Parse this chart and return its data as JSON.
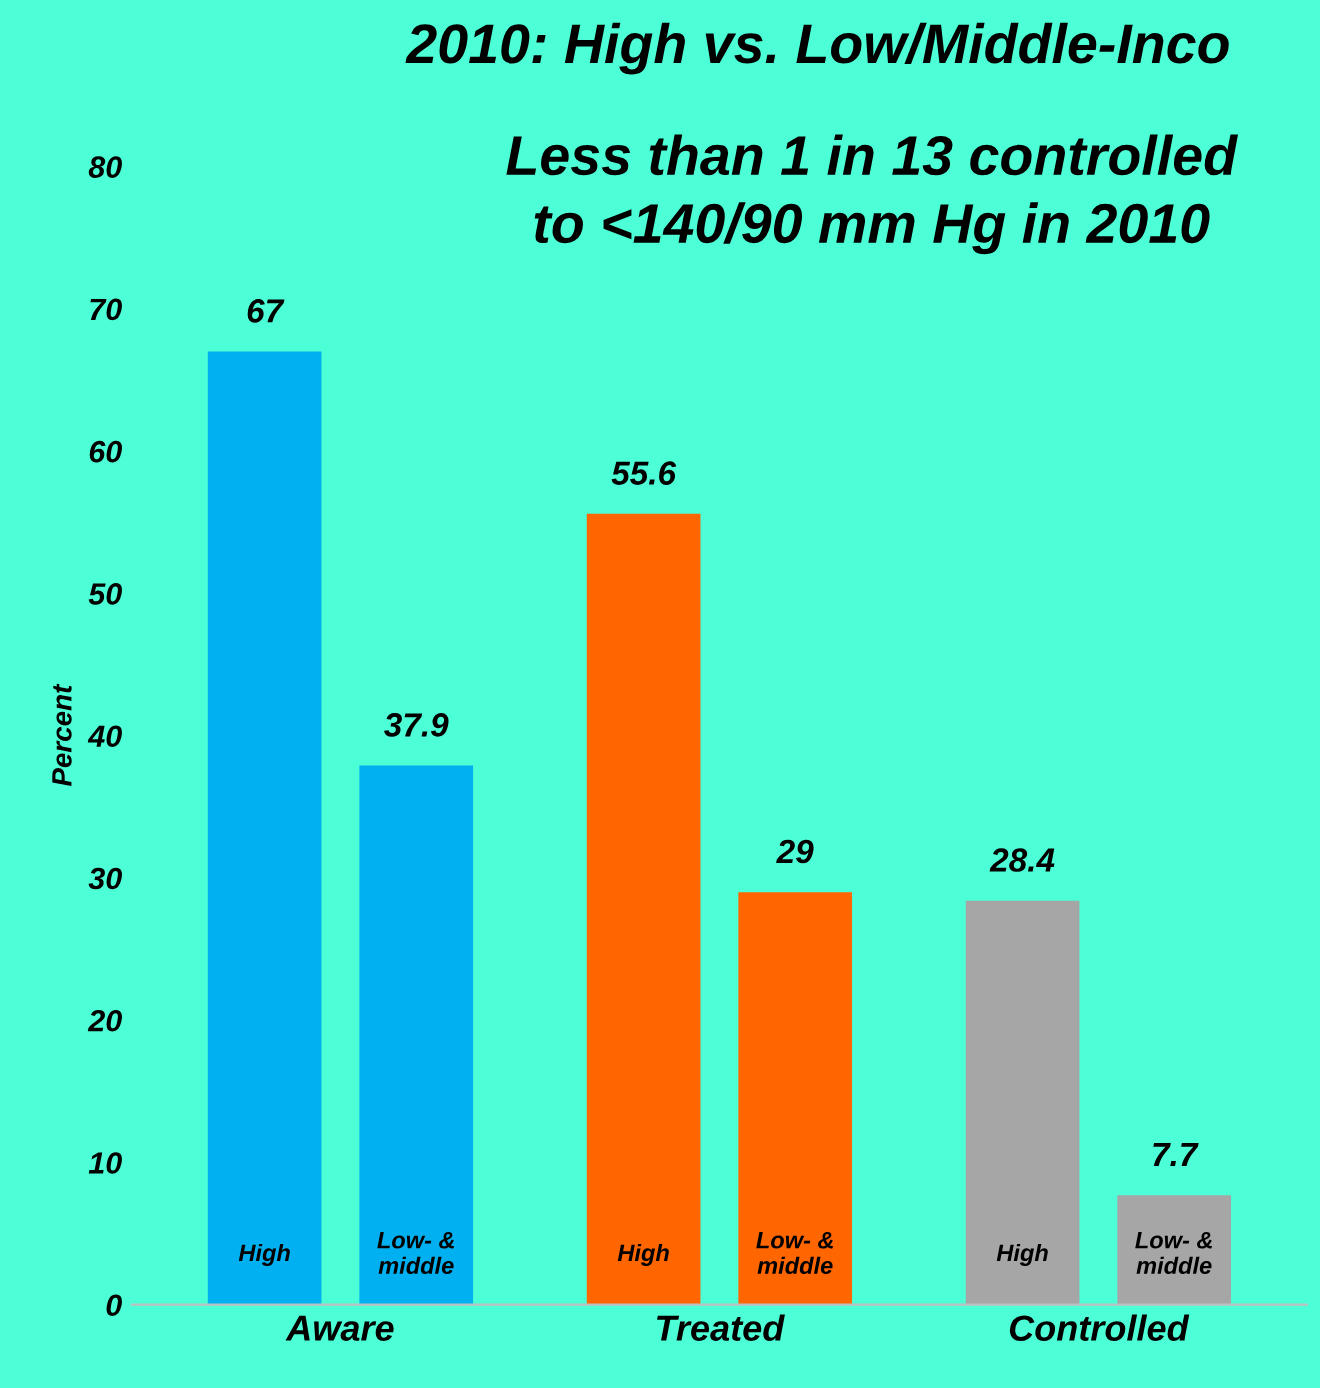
{
  "chart_data": {
    "type": "bar",
    "title": "2010: High vs. Low/Middle-Inco",
    "ylabel": "Percent",
    "categories": [
      "Aware",
      "Treated",
      "Controlled"
    ],
    "series": [
      {
        "name": "High",
        "colors": [
          "#00b0f0",
          "#ff6600",
          "#a6a6a6"
        ],
        "values": [
          67,
          55.6,
          28.4
        ]
      },
      {
        "name": "Low- &\nmiddle",
        "colors": [
          "#00b0f0",
          "#ff6600",
          "#a6a6a6"
        ],
        "values": [
          37.9,
          29,
          7.7
        ]
      }
    ],
    "ylim": [
      0,
      80
    ],
    "yticks": [
      0,
      10,
      20,
      30,
      40,
      50,
      60,
      70,
      80
    ],
    "data_labels": true,
    "grid": false,
    "legend": false,
    "annotations": [
      "Less than 1 in 13 controlled\nto <140/90 mm Hg in 2010"
    ]
  }
}
